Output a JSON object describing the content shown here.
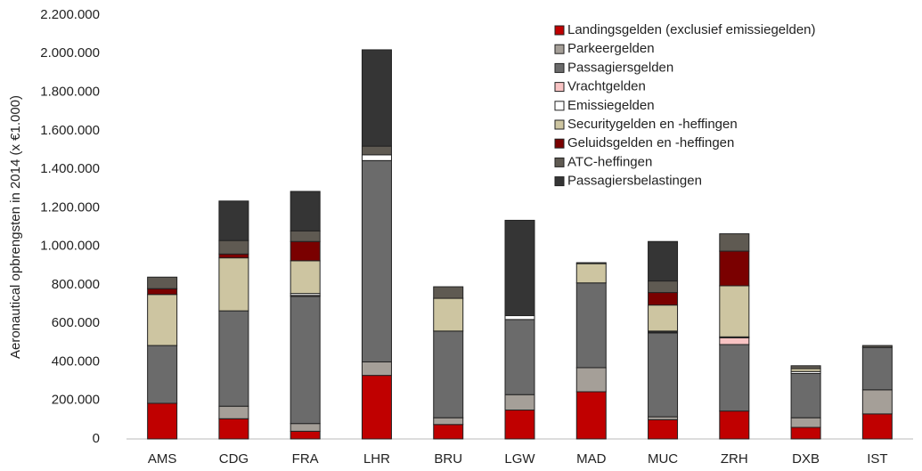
{
  "chart_data": {
    "type": "stacked_bar",
    "y_label": "Aeronautical opbrengsten in 2014 (x €1.000)",
    "categories": [
      "AMS",
      "CDG",
      "FRA",
      "LHR",
      "BRU",
      "LGW",
      "MAD",
      "MUC",
      "ZRH",
      "DXB",
      "IST"
    ],
    "ylim": [
      0,
      2200000
    ],
    "yticks": [
      0,
      {
        "value": 200000,
        "label": "200.000"
      },
      {
        "value": 400000,
        "label": "400.000"
      },
      {
        "value": 600000,
        "label": "600.000"
      },
      {
        "value": 800000,
        "label": "800.000"
      },
      {
        "value": 1000000,
        "label": "1.000.000"
      },
      {
        "value": 1200000,
        "label": "1.200.000"
      },
      {
        "value": 1400000,
        "label": "1.400.000"
      },
      {
        "value": 1600000,
        "label": "1.600.000"
      },
      {
        "value": 1800000,
        "label": "1.800.000"
      },
      {
        "value": 2000000,
        "label": "2.000.000"
      },
      {
        "value": 2200000,
        "label": "2.200.000"
      }
    ],
    "grid": false,
    "legend": "top-right",
    "series": [
      {
        "name": "Landingsgelden (exclusief emissiegelden)",
        "color": "#c00000",
        "values": [
          185000,
          105000,
          40000,
          330000,
          75000,
          150000,
          245000,
          100000,
          145000,
          60000,
          130000
        ]
      },
      {
        "name": "Parkeergelden",
        "color": "#a59f98",
        "values": [
          0,
          65000,
          40000,
          70000,
          35000,
          80000,
          125000,
          15000,
          0,
          50000,
          125000
        ]
      },
      {
        "name": "Passagiersgelden",
        "color": "#6b6b6b",
        "values": [
          300000,
          495000,
          660000,
          1045000,
          450000,
          390000,
          440000,
          435000,
          345000,
          230000,
          220000
        ]
      },
      {
        "name": "Vrachtgelden",
        "color": "#f8c3c3",
        "values": [
          0,
          0,
          5000,
          0,
          0,
          0,
          0,
          5000,
          35000,
          0,
          0
        ]
      },
      {
        "name": "Emissiegelden",
        "color": "#ffffff",
        "values": [
          0,
          0,
          10000,
          30000,
          0,
          20000,
          0,
          5000,
          5000,
          10000,
          0
        ]
      },
      {
        "name": "Securitygelden en -heffingen",
        "color": "#cdc5a1",
        "values": [
          265000,
          275000,
          170000,
          0,
          170000,
          0,
          100000,
          135000,
          265000,
          15000,
          0
        ]
      },
      {
        "name": "Geluidsgelden en -heffingen",
        "color": "#7a0000",
        "values": [
          30000,
          20000,
          100000,
          0,
          0,
          0,
          0,
          65000,
          180000,
          0,
          0
        ]
      },
      {
        "name": "ATC-heffingen",
        "color": "#5f5a52",
        "values": [
          60000,
          70000,
          55000,
          45000,
          60000,
          0,
          5000,
          60000,
          90000,
          15000,
          10000
        ]
      },
      {
        "name": "Passagiersbelastingen",
        "color": "#353535",
        "values": [
          0,
          205000,
          205000,
          500000,
          0,
          495000,
          0,
          205000,
          0,
          0,
          0
        ]
      }
    ]
  }
}
